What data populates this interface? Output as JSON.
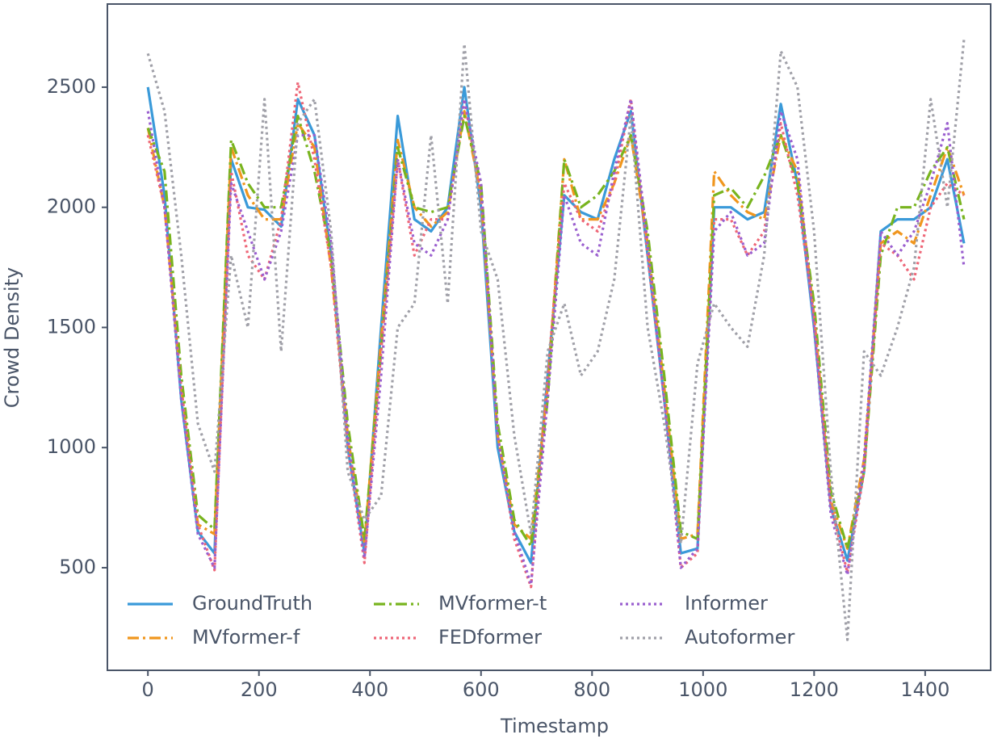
{
  "chart_data": {
    "type": "line",
    "xlabel": "Timestamp",
    "ylabel": "Crowd Density",
    "x": [
      0,
      30,
      60,
      90,
      120,
      150,
      180,
      210,
      240,
      270,
      300,
      330,
      360,
      390,
      420,
      450,
      480,
      510,
      540,
      570,
      600,
      630,
      660,
      690,
      720,
      750,
      780,
      810,
      840,
      870,
      900,
      930,
      960,
      990,
      1020,
      1050,
      1080,
      1110,
      1140,
      1170,
      1200,
      1230,
      1260,
      1290,
      1320,
      1350,
      1380,
      1410,
      1440,
      1470
    ],
    "series": [
      {
        "name": "GroundTruth",
        "color": "#3a9ad9",
        "style": "solid",
        "values": [
          2500,
          2050,
          1200,
          650,
          560,
          2200,
          2000,
          1990,
          1920,
          2450,
          2300,
          1800,
          1000,
          560,
          1500,
          2380,
          1950,
          1900,
          2000,
          2500,
          2000,
          1000,
          650,
          520,
          1300,
          2050,
          1980,
          1950,
          2200,
          2400,
          1800,
          1200,
          560,
          580,
          2000,
          2000,
          1950,
          1980,
          2430,
          2100,
          1500,
          750,
          530,
          900,
          1900,
          1950,
          1950,
          2000,
          2200,
          1850
        ]
      },
      {
        "name": "MVformer-f",
        "color": "#f0961e",
        "style": "dashdot",
        "values": [
          2330,
          2000,
          1250,
          680,
          640,
          2250,
          2050,
          1950,
          1950,
          2350,
          2250,
          1750,
          1050,
          600,
          1450,
          2280,
          2000,
          1920,
          1980,
          2400,
          2050,
          1050,
          680,
          620,
          1250,
          2200,
          1950,
          1950,
          2100,
          2300,
          1850,
          1250,
          620,
          640,
          2150,
          2050,
          1980,
          1950,
          2300,
          2150,
          1550,
          780,
          580,
          950,
          1850,
          1900,
          1850,
          2050,
          2250,
          2050
        ]
      },
      {
        "name": "MVformer-t",
        "color": "#78b41e",
        "style": "dashdot",
        "values": [
          2330,
          2150,
          1300,
          720,
          660,
          2280,
          2100,
          2000,
          2000,
          2380,
          2150,
          1800,
          1100,
          620,
          1400,
          2250,
          2000,
          1980,
          2000,
          2380,
          2100,
          1100,
          700,
          590,
          1200,
          2200,
          2000,
          2050,
          2150,
          2300,
          1900,
          1300,
          650,
          620,
          2050,
          2080,
          2000,
          2130,
          2300,
          2100,
          1600,
          820,
          580,
          900,
          1800,
          2000,
          2000,
          2150,
          2250,
          1950
        ]
      },
      {
        "name": "FEDformer",
        "color": "#ee6677",
        "style": "dotted",
        "values": [
          2300,
          2000,
          1250,
          680,
          490,
          2150,
          1800,
          1700,
          1950,
          2520,
          2200,
          1750,
          1000,
          520,
          1400,
          2200,
          1800,
          1950,
          1950,
          2450,
          2050,
          1050,
          620,
          420,
          1300,
          2100,
          1950,
          1900,
          2100,
          2450,
          1800,
          1200,
          500,
          560,
          1950,
          1950,
          1800,
          1900,
          2350,
          2050,
          1550,
          760,
          480,
          900,
          1850,
          1800,
          1700,
          2000,
          2100,
          2050
        ]
      },
      {
        "name": "Informer",
        "color": "#9a5fcf",
        "style": "dotted",
        "values": [
          2400,
          2000,
          1200,
          640,
          500,
          2100,
          1900,
          1700,
          1900,
          2300,
          2300,
          1850,
          1050,
          540,
          1300,
          2200,
          1850,
          1800,
          1950,
          2450,
          2100,
          1050,
          650,
          430,
          1200,
          2050,
          1850,
          1800,
          2150,
          2450,
          1850,
          1200,
          500,
          580,
          1900,
          1980,
          1800,
          1850,
          2400,
          2200,
          1500,
          720,
          470,
          950,
          1900,
          1800,
          1900,
          2100,
          2350,
          1750
        ]
      },
      {
        "name": "Autoformer",
        "color": "#a0a0a8",
        "style": "dotted",
        "values": [
          2640,
          2400,
          1800,
          1100,
          900,
          1800,
          1500,
          2450,
          1400,
          2350,
          2450,
          1900,
          900,
          700,
          800,
          1500,
          1600,
          2300,
          1600,
          2680,
          1900,
          1700,
          1050,
          640,
          1400,
          1600,
          1300,
          1400,
          1700,
          2380,
          1500,
          1100,
          600,
          1350,
          1600,
          1500,
          1420,
          1800,
          2650,
          2500,
          1900,
          900,
          200,
          1400,
          1300,
          1500,
          1750,
          2450,
          2000,
          2700
        ]
      }
    ],
    "xlim": [
      -73,
      1518
    ],
    "ylim": [
      73,
      2846
    ],
    "xticks": [
      0,
      200,
      400,
      600,
      800,
      1000,
      1200,
      1400
    ],
    "yticks": [
      500,
      1000,
      1500,
      2000,
      2500
    ],
    "grid": false,
    "legend": "lower left"
  }
}
